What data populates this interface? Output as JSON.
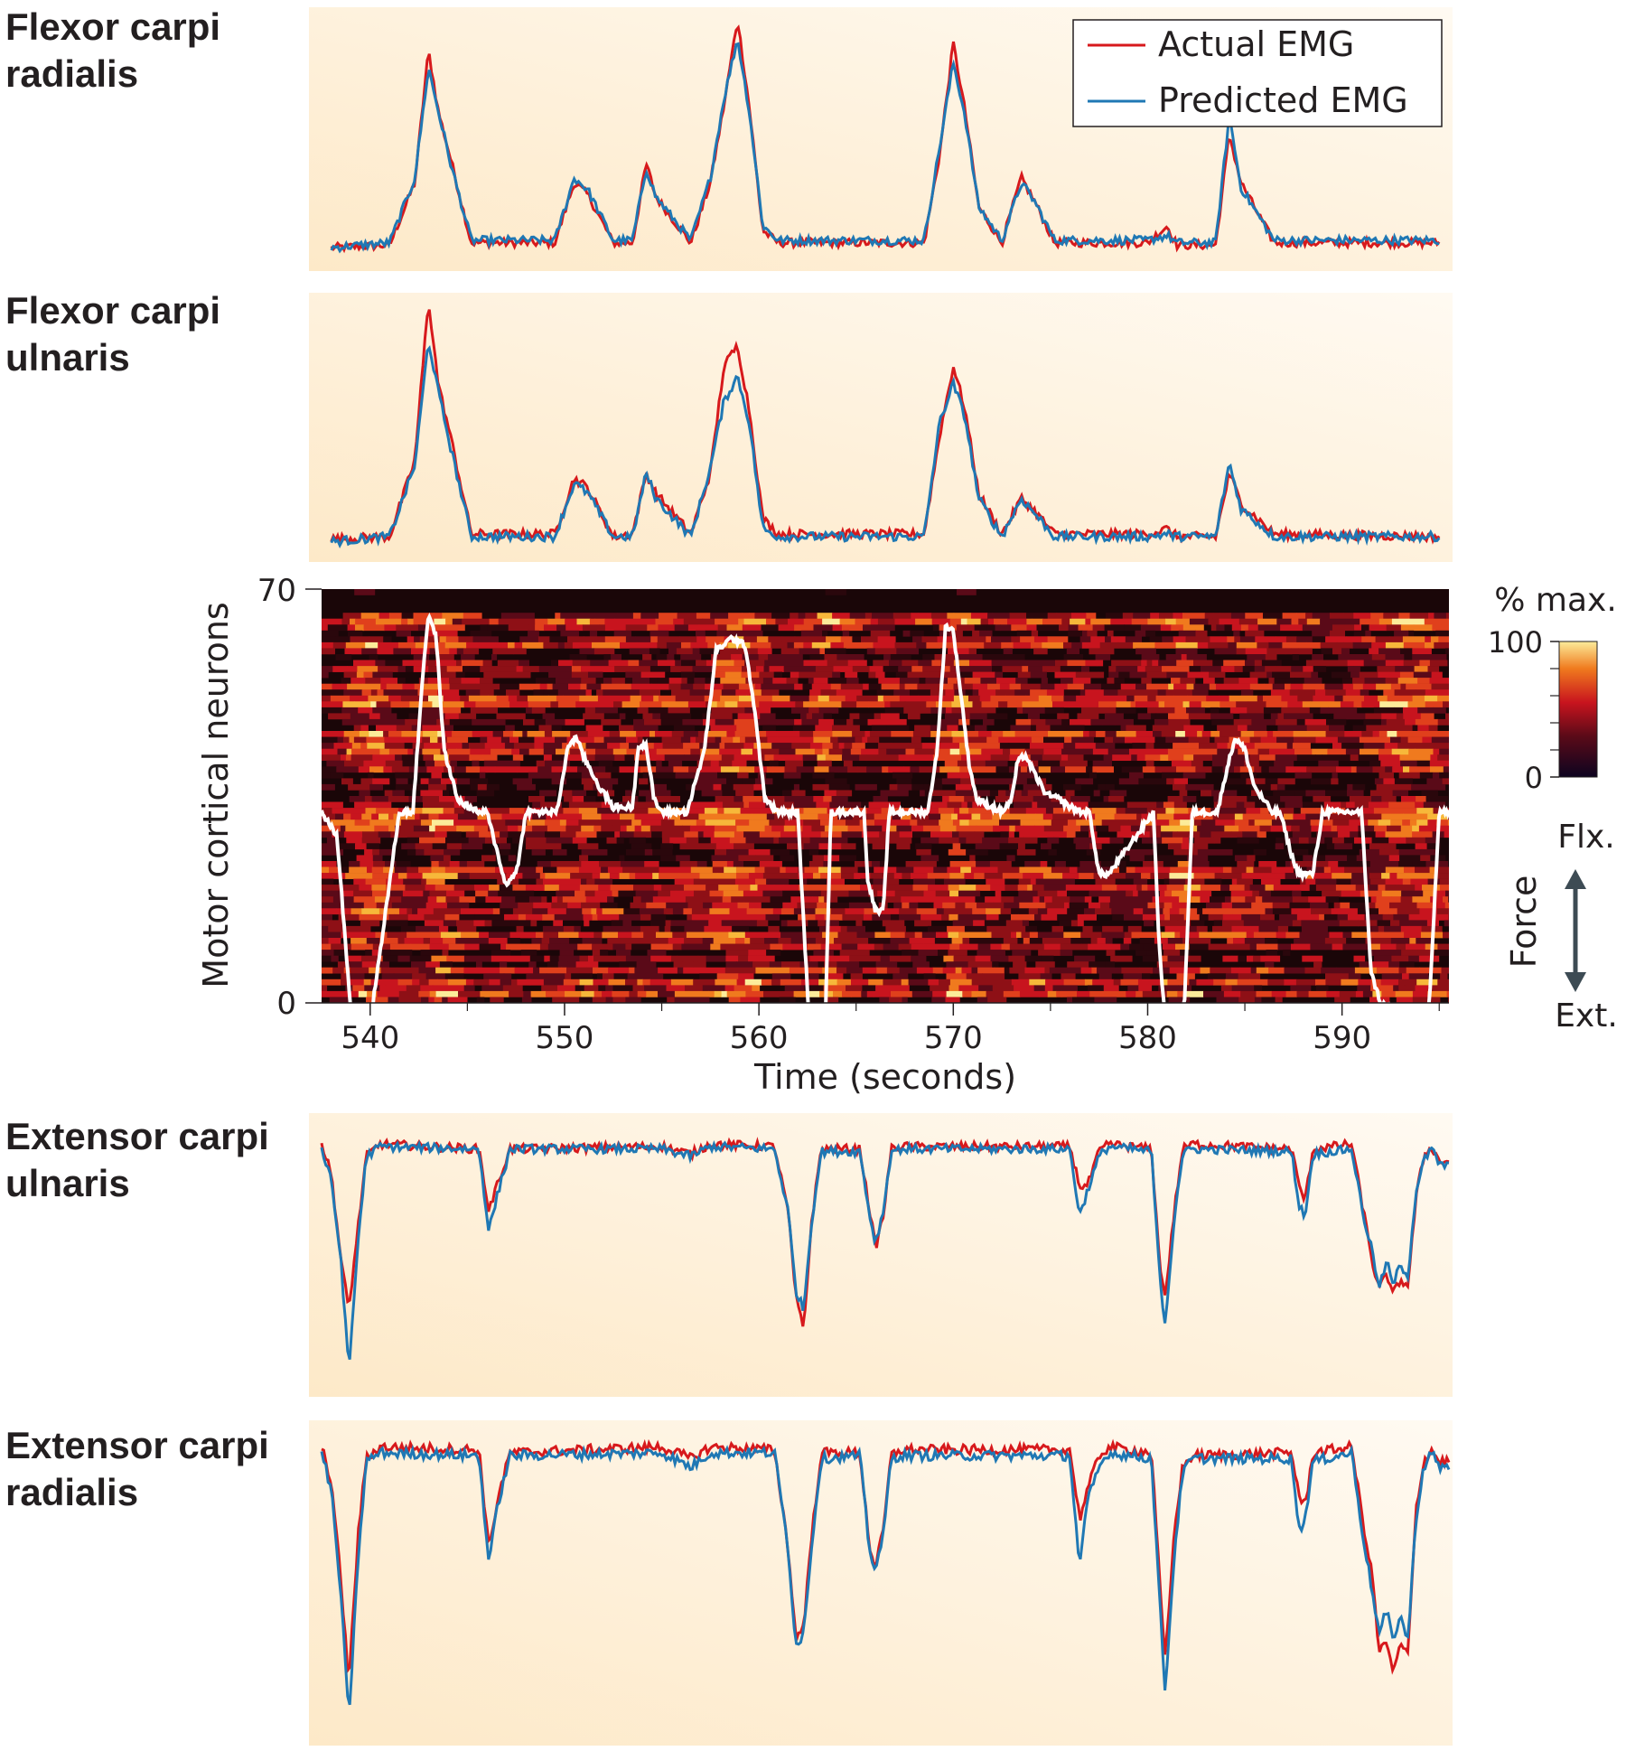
{
  "colors": {
    "actual": "#d7191c",
    "predicted": "#1f78b4",
    "panel_bg_light": "#fffaf2",
    "panel_bg_dark": "#fde9c8",
    "force_trace": "#ffffff",
    "axis": "#231f20"
  },
  "legend": {
    "actual_label": "Actual EMG",
    "predicted_label": "Predicted EMG",
    "placement": "top-right"
  },
  "labels": {
    "fcr": [
      "Flexor carpi",
      "radialis"
    ],
    "fcu": [
      "Flexor carpi",
      "ulnaris"
    ],
    "ecu": [
      "Extensor carpi",
      "ulnaris"
    ],
    "ecr": [
      "Extensor carpi",
      "radialis"
    ],
    "xlabel": "Time (seconds)",
    "ylabel": "Motor cortical neurons",
    "colorbar_title": "% max.",
    "colorbar_max": "100",
    "colorbar_min": "0",
    "force_label": "Force",
    "flexion": "Flx.",
    "extension": "Ext."
  },
  "chart_data": [
    {
      "type": "line",
      "name": "Flexor carpi radialis",
      "x": [
        538,
        541,
        542.3,
        543.0,
        543.5,
        544.2,
        545.2,
        549.5,
        550.5,
        551.2,
        552.5,
        553.5,
        554.2,
        554.7,
        556.5,
        557.5,
        558.2,
        558.9,
        559.5,
        560.2,
        561.0,
        568.5,
        569.3,
        570.0,
        570.6,
        571.3,
        572.5,
        573.5,
        574.2,
        575.2,
        580.0,
        581.0,
        581.5,
        583.5,
        584.2,
        584.8,
        586.5,
        595
      ],
      "series": [
        {
          "name": "Actual EMG",
          "values": [
            0.03,
            0.04,
            0.3,
            0.85,
            0.6,
            0.38,
            0.05,
            0.05,
            0.3,
            0.25,
            0.05,
            0.05,
            0.38,
            0.24,
            0.05,
            0.3,
            0.62,
            0.98,
            0.62,
            0.1,
            0.05,
            0.05,
            0.42,
            0.88,
            0.6,
            0.2,
            0.05,
            0.32,
            0.22,
            0.05,
            0.05,
            0.12,
            0.04,
            0.04,
            0.5,
            0.3,
            0.05,
            0.05
          ]
        },
        {
          "name": "Predicted EMG",
          "values": [
            0.03,
            0.05,
            0.32,
            0.78,
            0.6,
            0.36,
            0.06,
            0.06,
            0.32,
            0.27,
            0.06,
            0.06,
            0.36,
            0.24,
            0.06,
            0.32,
            0.65,
            0.9,
            0.6,
            0.12,
            0.06,
            0.06,
            0.45,
            0.8,
            0.58,
            0.2,
            0.06,
            0.3,
            0.22,
            0.06,
            0.06,
            0.08,
            0.05,
            0.05,
            0.58,
            0.28,
            0.06,
            0.06
          ]
        }
      ]
    },
    {
      "type": "line",
      "name": "Flexor carpi ulnaris",
      "x": [
        538,
        541,
        542.3,
        543.0,
        543.5,
        544.2,
        545.2,
        549.5,
        550.5,
        551.2,
        552.5,
        553.5,
        554.2,
        554.7,
        556.5,
        557.5,
        558.2,
        558.9,
        559.5,
        560.2,
        561.0,
        568.5,
        569.3,
        570.0,
        570.6,
        571.3,
        572.5,
        573.5,
        574.2,
        575.2,
        580.0,
        581.0,
        581.5,
        583.5,
        584.2,
        584.8,
        586.5,
        595
      ],
      "series": [
        {
          "name": "Actual EMG",
          "values": [
            0.04,
            0.05,
            0.35,
            0.98,
            0.65,
            0.42,
            0.06,
            0.06,
            0.28,
            0.24,
            0.05,
            0.06,
            0.3,
            0.22,
            0.06,
            0.3,
            0.72,
            0.8,
            0.55,
            0.12,
            0.06,
            0.06,
            0.45,
            0.72,
            0.55,
            0.22,
            0.06,
            0.2,
            0.15,
            0.06,
            0.06,
            0.08,
            0.05,
            0.05,
            0.3,
            0.18,
            0.06,
            0.05
          ]
        },
        {
          "name": "Predicted EMG",
          "values": [
            0.03,
            0.05,
            0.33,
            0.82,
            0.62,
            0.38,
            0.05,
            0.05,
            0.26,
            0.22,
            0.05,
            0.05,
            0.3,
            0.2,
            0.05,
            0.32,
            0.58,
            0.68,
            0.5,
            0.08,
            0.05,
            0.05,
            0.5,
            0.65,
            0.52,
            0.2,
            0.05,
            0.2,
            0.14,
            0.05,
            0.05,
            0.06,
            0.05,
            0.05,
            0.34,
            0.16,
            0.05,
            0.05
          ]
        }
      ]
    },
    {
      "type": "heatmap",
      "name": "Motor cortical neurons",
      "xlabel": "Time (seconds)",
      "ylabel": "Motor cortical neurons",
      "xlim": [
        537.5,
        595.5
      ],
      "ylim": [
        0,
        70
      ],
      "xticks": [
        540,
        550,
        560,
        570,
        580,
        590
      ],
      "yticks": [
        0,
        70
      ],
      "colorbar": {
        "label": "% max.",
        "range": [
          0,
          100
        ]
      },
      "force_trace": {
        "x": [
          537.5,
          538.3,
          538.8,
          539.3,
          539.6,
          540.0,
          541.5,
          542.2,
          542.7,
          543.0,
          543.4,
          543.8,
          544.5,
          545.5,
          546.0,
          546.5,
          547.0,
          547.6,
          548.0,
          549.6,
          550.2,
          550.6,
          551.0,
          551.8,
          552.5,
          553.5,
          553.8,
          554.2,
          554.6,
          555.0,
          555.6,
          556.3,
          557.2,
          557.8,
          558.6,
          559.3,
          559.8,
          560.3,
          561.0,
          562.0,
          562.3,
          562.6,
          563.0,
          563.4,
          563.7,
          565.4,
          565.6,
          566.0,
          566.4,
          566.7,
          568.7,
          569.2,
          569.6,
          570.0,
          570.4,
          570.8,
          571.2,
          572.0,
          572.5,
          573.0,
          573.3,
          573.7,
          574.2,
          574.8,
          575.5,
          576.0,
          576.6,
          577.0,
          577.5,
          578.0,
          580.3,
          580.6,
          581.0,
          581.5,
          581.9,
          582.3,
          583.6,
          584.0,
          584.5,
          585.0,
          585.5,
          586.4,
          586.8,
          587.5,
          587.8,
          588.5,
          589.0,
          589.5,
          591.0,
          591.5,
          592.0,
          593.0,
          594.0,
          594.5,
          595.0,
          595.5
        ],
        "y": [
          0.15,
          0.05,
          -0.45,
          -0.9,
          -0.95,
          -0.7,
          0.15,
          0.15,
          0.7,
          0.95,
          0.85,
          0.4,
          0.2,
          0.15,
          0.15,
          0.0,
          -0.15,
          -0.07,
          0.15,
          0.15,
          0.42,
          0.45,
          0.37,
          0.25,
          0.17,
          0.17,
          0.42,
          0.42,
          0.2,
          0.15,
          0.15,
          0.15,
          0.4,
          0.8,
          0.85,
          0.82,
          0.55,
          0.2,
          0.15,
          0.15,
          -0.3,
          -0.7,
          -0.8,
          -0.75,
          0.15,
          0.15,
          -0.12,
          -0.25,
          -0.25,
          0.15,
          0.15,
          0.42,
          0.9,
          0.88,
          0.62,
          0.35,
          0.2,
          0.17,
          0.15,
          0.2,
          0.35,
          0.38,
          0.3,
          0.22,
          0.2,
          0.17,
          0.15,
          0.15,
          -0.1,
          -0.1,
          0.15,
          -0.4,
          -0.78,
          -0.8,
          -0.6,
          0.15,
          0.15,
          0.3,
          0.45,
          0.4,
          0.25,
          0.15,
          0.15,
          -0.05,
          -0.1,
          -0.1,
          0.15,
          0.15,
          0.15,
          -0.5,
          -0.62,
          -0.65,
          -0.75,
          -0.6,
          0.15,
          0.15
        ]
      },
      "force_axis": {
        "top": "Flx.",
        "bottom": "Ext.",
        "label": "Force"
      }
    },
    {
      "type": "line",
      "name": "Extensor carpi ulnaris",
      "x": [
        537.5,
        538.0,
        538.5,
        538.9,
        539.4,
        539.8,
        540.5,
        545.6,
        546.1,
        546.6,
        547.2,
        555.0,
        556.5,
        557.5,
        560.8,
        561.5,
        561.9,
        562.3,
        562.7,
        563.2,
        565.2,
        565.7,
        566.0,
        566.4,
        566.8,
        567.3,
        576.0,
        576.5,
        576.9,
        577.5,
        578.0,
        580.2,
        580.6,
        580.9,
        581.4,
        581.8,
        582.3,
        587.4,
        587.8,
        588.1,
        588.5,
        590.5,
        591.1,
        591.6,
        591.9,
        592.3,
        592.6,
        593.0,
        593.4,
        593.8,
        594.2,
        594.6,
        595.0,
        595.5
      ],
      "series": [
        {
          "name": "Actual EMG",
          "values": [
            0.97,
            0.85,
            0.5,
            0.3,
            0.65,
            0.92,
            0.97,
            0.95,
            0.7,
            0.82,
            0.95,
            0.96,
            0.93,
            0.97,
            0.96,
            0.7,
            0.35,
            0.22,
            0.65,
            0.95,
            0.95,
            0.7,
            0.55,
            0.68,
            0.95,
            0.96,
            0.96,
            0.8,
            0.8,
            0.94,
            0.97,
            0.95,
            0.5,
            0.35,
            0.72,
            0.95,
            0.97,
            0.95,
            0.8,
            0.74,
            0.95,
            0.97,
            0.7,
            0.48,
            0.38,
            0.45,
            0.36,
            0.42,
            0.4,
            0.75,
            0.92,
            0.96,
            0.9,
            0.9
          ]
        },
        {
          "name": "Predicted EMG",
          "values": [
            0.95,
            0.82,
            0.5,
            0.05,
            0.6,
            0.92,
            0.96,
            0.95,
            0.62,
            0.78,
            0.95,
            0.95,
            0.92,
            0.96,
            0.95,
            0.7,
            0.38,
            0.3,
            0.65,
            0.94,
            0.94,
            0.68,
            0.57,
            0.7,
            0.94,
            0.95,
            0.95,
            0.68,
            0.78,
            0.92,
            0.96,
            0.94,
            0.45,
            0.24,
            0.7,
            0.93,
            0.95,
            0.94,
            0.72,
            0.68,
            0.93,
            0.95,
            0.68,
            0.52,
            0.38,
            0.5,
            0.4,
            0.48,
            0.44,
            0.78,
            0.9,
            0.95,
            0.89,
            0.88
          ]
        }
      ]
    },
    {
      "type": "line",
      "name": "Extensor carpi radialis",
      "x": [
        537.5,
        538.0,
        538.5,
        538.9,
        539.4,
        539.8,
        540.5,
        545.6,
        546.1,
        546.6,
        547.2,
        555.0,
        556.5,
        557.5,
        560.8,
        561.5,
        561.9,
        562.3,
        562.7,
        563.2,
        565.2,
        565.7,
        566.0,
        566.4,
        566.8,
        567.3,
        576.0,
        576.5,
        576.9,
        577.5,
        578.0,
        580.2,
        580.6,
        580.9,
        581.4,
        581.8,
        582.3,
        587.4,
        587.8,
        588.1,
        588.5,
        590.5,
        591.1,
        591.6,
        591.9,
        592.3,
        592.6,
        593.0,
        593.4,
        593.8,
        594.2,
        594.6,
        595.0,
        595.5
      ],
      "series": [
        {
          "name": "Actual EMG",
          "values": [
            0.97,
            0.85,
            0.5,
            0.15,
            0.68,
            0.93,
            0.97,
            0.96,
            0.62,
            0.8,
            0.95,
            0.97,
            0.93,
            0.97,
            0.96,
            0.62,
            0.3,
            0.35,
            0.65,
            0.95,
            0.95,
            0.62,
            0.55,
            0.68,
            0.94,
            0.96,
            0.96,
            0.72,
            0.82,
            0.94,
            0.97,
            0.95,
            0.52,
            0.22,
            0.7,
            0.9,
            0.94,
            0.95,
            0.8,
            0.76,
            0.95,
            0.97,
            0.7,
            0.5,
            0.25,
            0.3,
            0.18,
            0.28,
            0.25,
            0.75,
            0.92,
            0.96,
            0.92,
            0.92
          ]
        },
        {
          "name": "Predicted EMG",
          "values": [
            0.95,
            0.82,
            0.45,
            0.02,
            0.6,
            0.92,
            0.95,
            0.94,
            0.57,
            0.78,
            0.94,
            0.95,
            0.9,
            0.95,
            0.95,
            0.62,
            0.28,
            0.32,
            0.62,
            0.93,
            0.94,
            0.6,
            0.55,
            0.66,
            0.93,
            0.94,
            0.94,
            0.55,
            0.78,
            0.9,
            0.95,
            0.93,
            0.45,
            0.12,
            0.62,
            0.88,
            0.93,
            0.93,
            0.68,
            0.72,
            0.92,
            0.95,
            0.65,
            0.45,
            0.32,
            0.4,
            0.3,
            0.38,
            0.3,
            0.72,
            0.9,
            0.95,
            0.9,
            0.9
          ]
        }
      ]
    }
  ]
}
